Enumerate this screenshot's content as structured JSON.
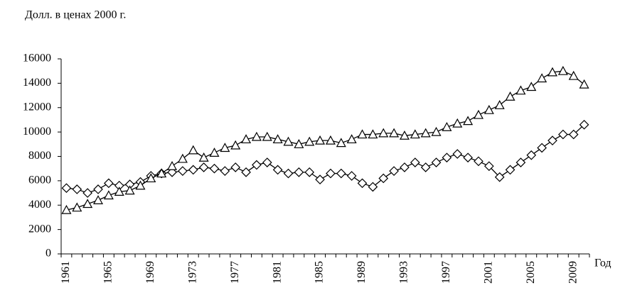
{
  "chart_data": {
    "type": "line",
    "y_label": "Долл.  в ценах 2000 г.",
    "x_label": "Год",
    "categories": [
      "1961",
      null,
      null,
      null,
      "1965",
      null,
      null,
      null,
      "1969",
      null,
      null,
      null,
      "1973",
      null,
      null,
      null,
      "1977",
      null,
      null,
      null,
      "1981",
      null,
      null,
      null,
      "1985",
      null,
      null,
      null,
      "1989",
      null,
      null,
      null,
      "1993",
      null,
      null,
      null,
      "1997",
      null,
      null,
      null,
      "2001",
      null,
      null,
      null,
      "2005",
      null,
      null,
      null,
      "2009",
      null
    ],
    "series": [
      {
        "color": "#000000",
        "marker": "diamond",
        "values": [
          5400,
          5300,
          5000,
          5300,
          5800,
          5600,
          5700,
          5900,
          6400,
          6600,
          6700,
          6800,
          6900,
          7100,
          7000,
          6800,
          7100,
          6700,
          7300,
          7500,
          6900,
          6600,
          6700,
          6700,
          6100,
          6600,
          6600,
          6400,
          5800,
          5500,
          6200,
          6800,
          7100,
          7500,
          7100,
          7500,
          7900,
          8200,
          7900,
          7600,
          7200,
          6300,
          6900,
          7500,
          8100,
          8700,
          9300,
          9800,
          9800,
          10600
        ]
      },
      {
        "color": "#000000",
        "marker": "triangle",
        "values": [
          3600,
          3800,
          4100,
          4400,
          4800,
          5100,
          5200,
          5600,
          6200,
          6600,
          7200,
          7800,
          8500,
          7900,
          8300,
          8700,
          8900,
          9400,
          9600,
          9600,
          9400,
          9200,
          9000,
          9200,
          9300,
          9300,
          9100,
          9400,
          9800,
          9800,
          9900,
          9900,
          9700,
          9800,
          9900,
          10000,
          10400,
          10700,
          10900,
          11400,
          11800,
          12200,
          12900,
          13400,
          13700,
          14400,
          14900,
          15000,
          14600,
          13900
        ]
      }
    ],
    "ylim": [
      0,
      16000
    ],
    "yticks": [
      0,
      2000,
      4000,
      6000,
      8000,
      10000,
      12000,
      14000,
      16000
    ],
    "grid": false
  }
}
